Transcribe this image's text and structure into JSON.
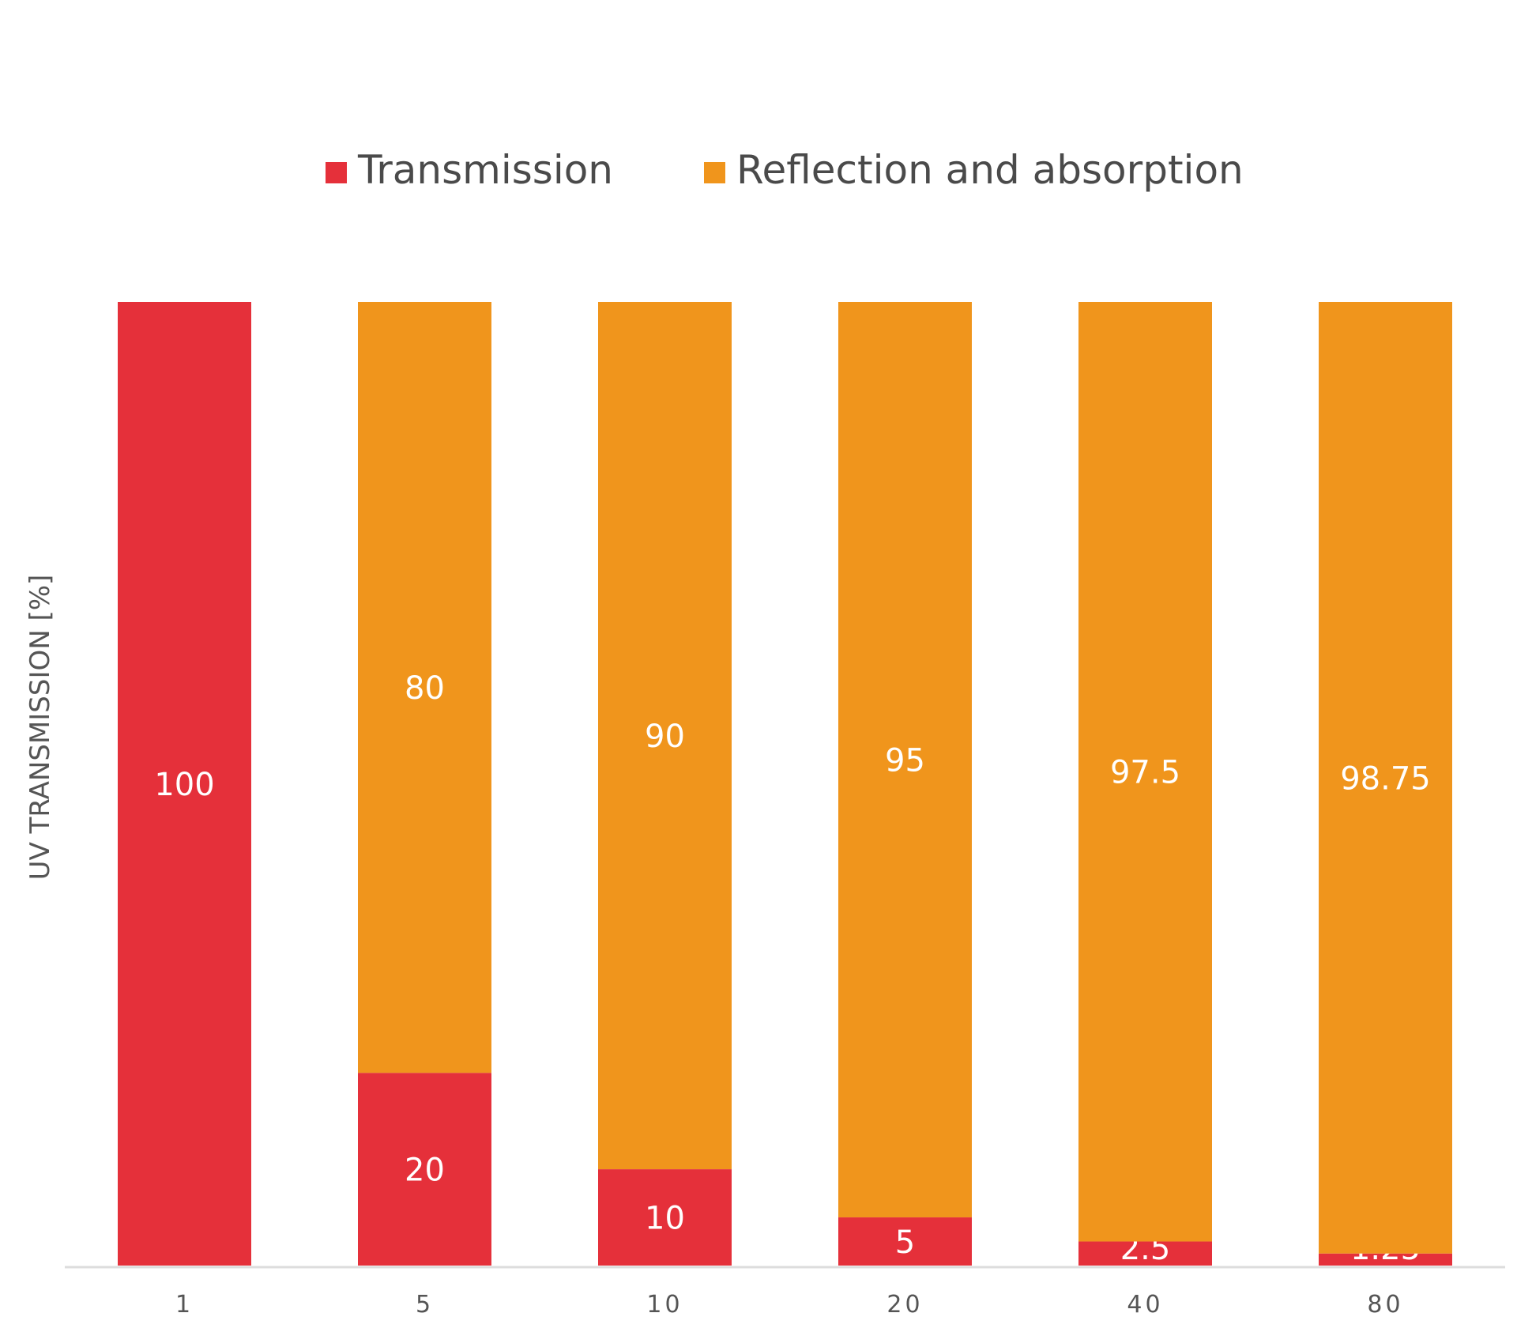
{
  "chart_data": {
    "type": "bar",
    "stacked": true,
    "categories": [
      "1",
      "5",
      "10",
      "20",
      "40",
      "80"
    ],
    "series": [
      {
        "name": "Transmission",
        "color": "#E5303A",
        "values": [
          100,
          20,
          10,
          5,
          2.5,
          1.25
        ],
        "labels": [
          "100",
          "20",
          "10",
          "5",
          "2.5",
          "1.25"
        ]
      },
      {
        "name": "Reflection and absorption",
        "color": "#F0951C",
        "values": [
          0,
          80,
          90,
          95,
          97.5,
          98.75
        ],
        "labels": [
          "",
          "80",
          "90",
          "95",
          "97.5",
          "98.75"
        ]
      }
    ],
    "ylabel": "UV TRANSMISSION [%]",
    "xlabel": "",
    "ylim": [
      0,
      100
    ],
    "grid": false,
    "legend_position": "top-center"
  }
}
